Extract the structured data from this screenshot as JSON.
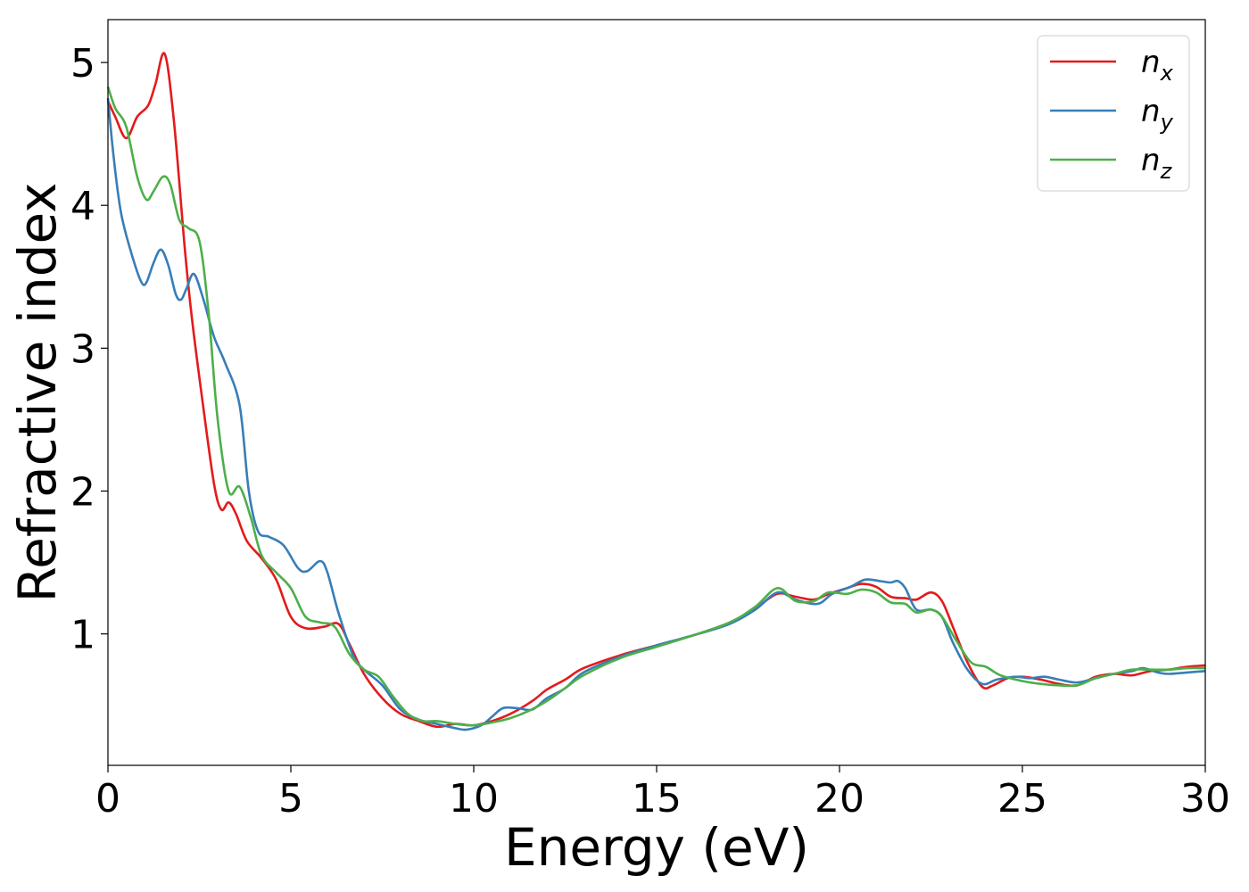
{
  "chart_data": {
    "type": "line",
    "title": "",
    "xlabel": "Energy (eV)",
    "ylabel": "Refractive index",
    "xlim": [
      0,
      30
    ],
    "ylim": [
      0.08,
      5.3
    ],
    "xticks": [
      0,
      5,
      10,
      15,
      20,
      25,
      30
    ],
    "yticks": [
      1,
      2,
      3,
      4,
      5
    ],
    "grid": false,
    "legend_position": "top-right",
    "series": [
      {
        "name": "n",
        "subscript": "x",
        "color": "#e41a1c",
        "points": [
          [
            0,
            4.73
          ],
          [
            0.2,
            4.62
          ],
          [
            0.5,
            4.47
          ],
          [
            0.8,
            4.62
          ],
          [
            1.1,
            4.7
          ],
          [
            1.3,
            4.85
          ],
          [
            1.55,
            5.06
          ],
          [
            1.8,
            4.6
          ],
          [
            2.1,
            3.7
          ],
          [
            2.3,
            3.2
          ],
          [
            2.6,
            2.6
          ],
          [
            2.9,
            2.05
          ],
          [
            3.1,
            1.87
          ],
          [
            3.3,
            1.92
          ],
          [
            3.5,
            1.84
          ],
          [
            3.8,
            1.65
          ],
          [
            4.2,
            1.53
          ],
          [
            4.6,
            1.38
          ],
          [
            5.0,
            1.12
          ],
          [
            5.4,
            1.04
          ],
          [
            5.9,
            1.05
          ],
          [
            6.3,
            1.07
          ],
          [
            6.6,
            0.93
          ],
          [
            7.0,
            0.72
          ],
          [
            7.5,
            0.55
          ],
          [
            8.0,
            0.44
          ],
          [
            8.5,
            0.39
          ],
          [
            9.0,
            0.35
          ],
          [
            9.5,
            0.37
          ],
          [
            10.0,
            0.36
          ],
          [
            10.5,
            0.39
          ],
          [
            11.0,
            0.44
          ],
          [
            11.6,
            0.53
          ],
          [
            12.0,
            0.61
          ],
          [
            12.5,
            0.68
          ],
          [
            13.0,
            0.76
          ],
          [
            14.0,
            0.85
          ],
          [
            15.0,
            0.92
          ],
          [
            16.0,
            0.99
          ],
          [
            17.0,
            1.08
          ],
          [
            17.7,
            1.18
          ],
          [
            18.3,
            1.28
          ],
          [
            18.8,
            1.26
          ],
          [
            19.3,
            1.24
          ],
          [
            19.7,
            1.28
          ],
          [
            20.2,
            1.32
          ],
          [
            20.6,
            1.35
          ],
          [
            21.0,
            1.33
          ],
          [
            21.4,
            1.26
          ],
          [
            21.8,
            1.25
          ],
          [
            22.1,
            1.24
          ],
          [
            22.5,
            1.29
          ],
          [
            22.8,
            1.23
          ],
          [
            23.1,
            1.05
          ],
          [
            23.5,
            0.8
          ],
          [
            23.9,
            0.63
          ],
          [
            24.2,
            0.64
          ],
          [
            24.6,
            0.69
          ],
          [
            25.0,
            0.7
          ],
          [
            25.5,
            0.68
          ],
          [
            26.0,
            0.65
          ],
          [
            26.5,
            0.64
          ],
          [
            27.0,
            0.7
          ],
          [
            27.5,
            0.72
          ],
          [
            28.0,
            0.71
          ],
          [
            28.5,
            0.74
          ],
          [
            29.0,
            0.75
          ],
          [
            29.5,
            0.77
          ],
          [
            30.0,
            0.78
          ]
        ]
      },
      {
        "name": "n",
        "subscript": "y",
        "color": "#377eb8",
        "points": [
          [
            0,
            4.75
          ],
          [
            0.15,
            4.35
          ],
          [
            0.35,
            3.96
          ],
          [
            0.6,
            3.7
          ],
          [
            0.9,
            3.47
          ],
          [
            1.05,
            3.46
          ],
          [
            1.25,
            3.6
          ],
          [
            1.45,
            3.69
          ],
          [
            1.65,
            3.58
          ],
          [
            1.85,
            3.38
          ],
          [
            2.0,
            3.34
          ],
          [
            2.15,
            3.42
          ],
          [
            2.35,
            3.52
          ],
          [
            2.6,
            3.35
          ],
          [
            2.9,
            3.08
          ],
          [
            3.2,
            2.9
          ],
          [
            3.6,
            2.6
          ],
          [
            3.85,
            2.0
          ],
          [
            4.1,
            1.72
          ],
          [
            4.4,
            1.68
          ],
          [
            4.8,
            1.62
          ],
          [
            5.2,
            1.46
          ],
          [
            5.45,
            1.44
          ],
          [
            5.8,
            1.51
          ],
          [
            6.0,
            1.43
          ],
          [
            6.3,
            1.15
          ],
          [
            6.7,
            0.85
          ],
          [
            7.0,
            0.75
          ],
          [
            7.5,
            0.64
          ],
          [
            8.0,
            0.47
          ],
          [
            8.5,
            0.4
          ],
          [
            9.0,
            0.37
          ],
          [
            9.5,
            0.34
          ],
          [
            9.8,
            0.33
          ],
          [
            10.2,
            0.36
          ],
          [
            10.5,
            0.42
          ],
          [
            10.8,
            0.48
          ],
          [
            11.2,
            0.48
          ],
          [
            11.6,
            0.47
          ],
          [
            12.0,
            0.55
          ],
          [
            12.5,
            0.62
          ],
          [
            13.0,
            0.73
          ],
          [
            14.0,
            0.84
          ],
          [
            15.0,
            0.92
          ],
          [
            16.0,
            0.99
          ],
          [
            17.0,
            1.07
          ],
          [
            17.7,
            1.17
          ],
          [
            18.3,
            1.29
          ],
          [
            18.8,
            1.24
          ],
          [
            19.4,
            1.21
          ],
          [
            19.8,
            1.28
          ],
          [
            20.3,
            1.33
          ],
          [
            20.7,
            1.38
          ],
          [
            21.1,
            1.37
          ],
          [
            21.4,
            1.36
          ],
          [
            21.6,
            1.37
          ],
          [
            21.8,
            1.32
          ],
          [
            22.1,
            1.17
          ],
          [
            22.5,
            1.17
          ],
          [
            22.8,
            1.12
          ],
          [
            23.1,
            0.94
          ],
          [
            23.5,
            0.75
          ],
          [
            23.9,
            0.65
          ],
          [
            24.3,
            0.68
          ],
          [
            24.8,
            0.7
          ],
          [
            25.2,
            0.69
          ],
          [
            25.6,
            0.7
          ],
          [
            26.0,
            0.68
          ],
          [
            26.5,
            0.66
          ],
          [
            27.0,
            0.69
          ],
          [
            27.5,
            0.72
          ],
          [
            28.0,
            0.74
          ],
          [
            28.3,
            0.76
          ],
          [
            28.7,
            0.73
          ],
          [
            29.0,
            0.72
          ],
          [
            29.5,
            0.73
          ],
          [
            30.0,
            0.74
          ]
        ]
      },
      {
        "name": "n",
        "subscript": "z",
        "color": "#4daf4a",
        "points": [
          [
            0,
            4.83
          ],
          [
            0.2,
            4.68
          ],
          [
            0.5,
            4.55
          ],
          [
            0.8,
            4.2
          ],
          [
            1.05,
            4.04
          ],
          [
            1.25,
            4.1
          ],
          [
            1.5,
            4.2
          ],
          [
            1.7,
            4.15
          ],
          [
            1.95,
            3.9
          ],
          [
            2.2,
            3.84
          ],
          [
            2.5,
            3.75
          ],
          [
            2.75,
            3.25
          ],
          [
            3.0,
            2.5
          ],
          [
            3.3,
            2.0
          ],
          [
            3.6,
            2.03
          ],
          [
            3.9,
            1.82
          ],
          [
            4.2,
            1.55
          ],
          [
            4.6,
            1.43
          ],
          [
            5.0,
            1.32
          ],
          [
            5.4,
            1.12
          ],
          [
            5.8,
            1.08
          ],
          [
            6.2,
            1.05
          ],
          [
            6.6,
            0.86
          ],
          [
            7.0,
            0.75
          ],
          [
            7.4,
            0.7
          ],
          [
            7.8,
            0.56
          ],
          [
            8.2,
            0.44
          ],
          [
            8.6,
            0.39
          ],
          [
            9.0,
            0.39
          ],
          [
            9.5,
            0.37
          ],
          [
            10.0,
            0.36
          ],
          [
            10.5,
            0.38
          ],
          [
            11.0,
            0.41
          ],
          [
            11.5,
            0.46
          ],
          [
            12.0,
            0.53
          ],
          [
            12.5,
            0.62
          ],
          [
            13.0,
            0.71
          ],
          [
            14.0,
            0.83
          ],
          [
            15.0,
            0.91
          ],
          [
            16.0,
            0.99
          ],
          [
            17.0,
            1.08
          ],
          [
            17.7,
            1.19
          ],
          [
            18.3,
            1.32
          ],
          [
            18.8,
            1.23
          ],
          [
            19.3,
            1.23
          ],
          [
            19.7,
            1.29
          ],
          [
            20.2,
            1.28
          ],
          [
            20.6,
            1.31
          ],
          [
            21.0,
            1.29
          ],
          [
            21.4,
            1.22
          ],
          [
            21.8,
            1.21
          ],
          [
            22.1,
            1.15
          ],
          [
            22.5,
            1.17
          ],
          [
            22.8,
            1.12
          ],
          [
            23.2,
            0.95
          ],
          [
            23.6,
            0.8
          ],
          [
            24.0,
            0.77
          ],
          [
            24.4,
            0.71
          ],
          [
            25.0,
            0.67
          ],
          [
            25.5,
            0.65
          ],
          [
            26.0,
            0.64
          ],
          [
            26.5,
            0.64
          ],
          [
            27.0,
            0.69
          ],
          [
            27.5,
            0.72
          ],
          [
            28.0,
            0.75
          ],
          [
            28.5,
            0.75
          ],
          [
            29.0,
            0.75
          ],
          [
            29.5,
            0.76
          ],
          [
            30.0,
            0.76
          ]
        ]
      }
    ]
  }
}
